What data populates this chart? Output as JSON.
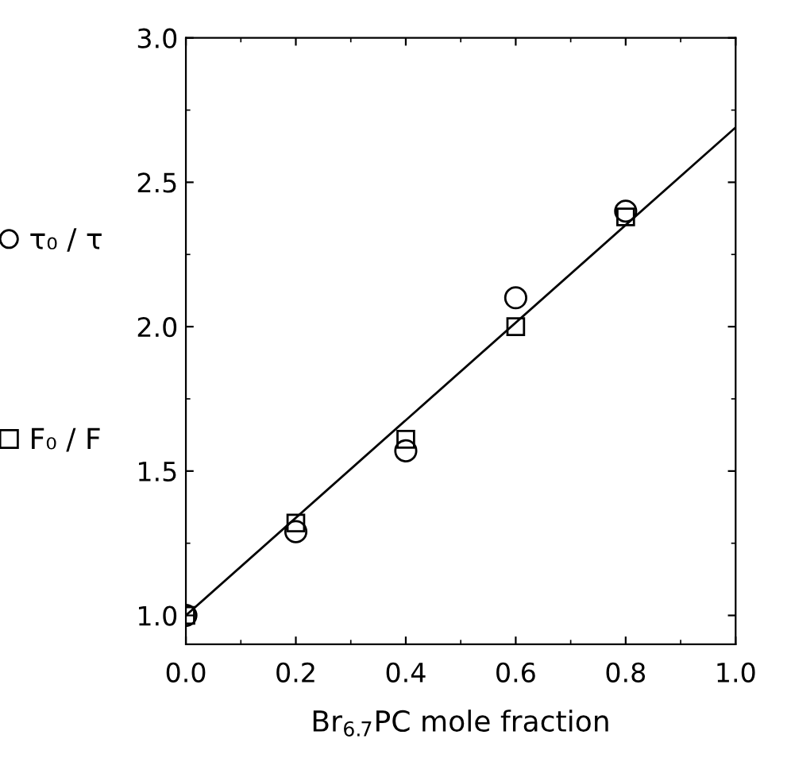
{
  "chart_data": {
    "type": "scatter",
    "xlabel": "Br$_{6.7}$PC mole fraction",
    "x": [
      0.0,
      0.2,
      0.4,
      0.6,
      0.8
    ],
    "series": [
      {
        "name": "τ₀ / τ",
        "color": "#000000",
        "marker": "circle",
        "values": [
          1.0,
          1.29,
          1.57,
          2.1,
          2.4
        ]
      },
      {
        "name": "F₀ / F",
        "color": "#000000",
        "marker": "square",
        "values": [
          1.0,
          1.32,
          1.61,
          2.0,
          2.38
        ]
      },
      {
        "type": "line",
        "color": "#000000",
        "marker": "none",
        "line_style": "solid",
        "x": [
          0.0,
          1.0
        ],
        "values": [
          1.0,
          2.69
        ]
      }
    ],
    "xlim": [
      0.0,
      1.0
    ],
    "ylim": [
      0.9,
      3.0
    ],
    "xticks": [
      {
        "value": 0.0,
        "label": "0.0"
      },
      0.2,
      0.4,
      0.6,
      0.8,
      {
        "value": 1.0,
        "label": "1.0"
      }
    ],
    "yticks": [
      {
        "value": 1.0,
        "label": "1.0"
      },
      1.5,
      {
        "value": 2.0,
        "label": "2.0"
      },
      2.5,
      {
        "value": 3.0,
        "label": "3.0"
      }
    ],
    "grid": false,
    "legend": "left"
  }
}
